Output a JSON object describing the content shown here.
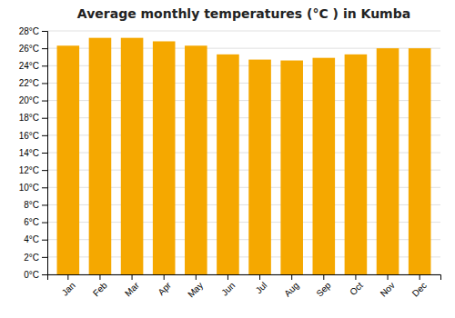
{
  "chart_data": {
    "type": "bar",
    "title": "Average monthly temperatures (°C ) in Kumba",
    "categories": [
      "Jan",
      "Feb",
      "Mar",
      "Apr",
      "May",
      "Jun",
      "Jul",
      "Aug",
      "Sep",
      "Oct",
      "Nov",
      "Dec"
    ],
    "values": [
      26.3,
      27.2,
      27.2,
      26.8,
      26.3,
      25.3,
      24.7,
      24.6,
      24.9,
      25.3,
      26.0,
      26.0
    ],
    "color": "#F5A800",
    "ylim": [
      0,
      28
    ],
    "yticks": [
      {
        "value": 0,
        "label": "0°C"
      },
      {
        "value": 2,
        "label": "2°C"
      },
      {
        "value": 4,
        "label": "4°C"
      },
      {
        "value": 6,
        "label": "6°C"
      },
      {
        "value": 8,
        "label": "8°C"
      },
      {
        "value": 10,
        "label": "10°C"
      },
      {
        "value": 12,
        "label": "12°C"
      },
      {
        "value": 14,
        "label": "14°C"
      },
      {
        "value": 16,
        "label": "16°C"
      },
      {
        "value": 18,
        "label": "18°C"
      },
      {
        "value": 20,
        "label": "20°C"
      },
      {
        "value": 22,
        "label": "22°C"
      },
      {
        "value": 24,
        "label": "24°C"
      },
      {
        "value": 26,
        "label": "26°C"
      },
      {
        "value": 28,
        "label": "28°C"
      }
    ],
    "grid": true
  }
}
